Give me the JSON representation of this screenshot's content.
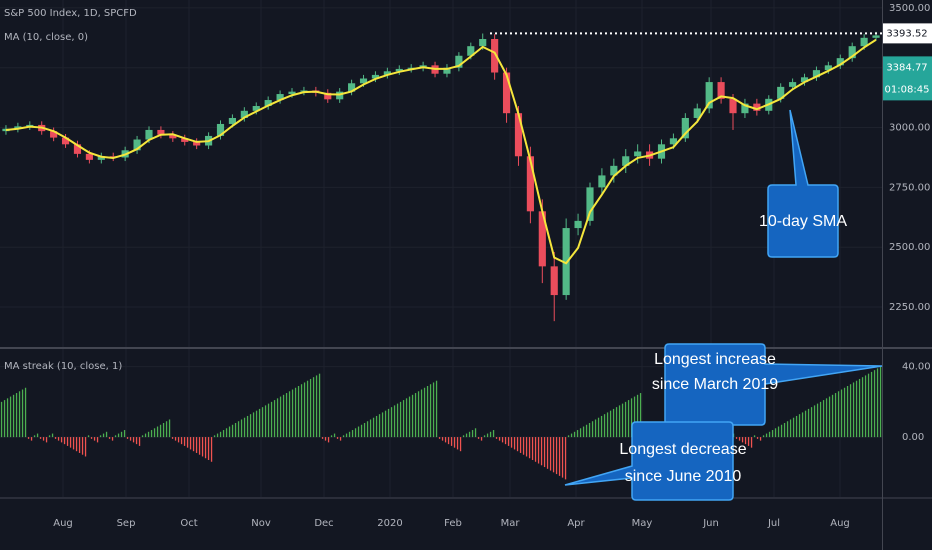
{
  "chart_data": [
    {
      "type": "candlestick",
      "title": "S&P 500 Index, 1D, SPCFD",
      "up_color": "#53b987",
      "down_color": "#eb4d5c",
      "open": [
        2985,
        2995,
        3005,
        3011,
        2985,
        2958,
        2930,
        2890,
        2865,
        2880,
        2875,
        2905,
        2950,
        2990,
        2970,
        2955,
        2940,
        2925,
        2965,
        3015,
        3040,
        3070,
        3090,
        3115,
        3140,
        3150,
        3155,
        3145,
        3118,
        3150,
        3185,
        3205,
        3220,
        3235,
        3245,
        3250,
        3260,
        3225,
        3250,
        3300,
        3340,
        3370,
        3230,
        3060,
        2880,
        2650,
        2420,
        2300,
        2580,
        2610,
        2750,
        2800,
        2840,
        2880,
        2900,
        2870,
        2930,
        2955,
        3040,
        3080,
        3190,
        3120,
        3060,
        3100,
        3070,
        3120,
        3170,
        3190,
        3210,
        3240,
        3260,
        3290,
        3340,
        3375
      ],
      "high": [
        3010,
        3020,
        3026,
        3026,
        3000,
        2973,
        2945,
        2905,
        2895,
        2895,
        2920,
        2965,
        3005,
        3005,
        2985,
        2970,
        2955,
        2980,
        3030,
        3055,
        3085,
        3105,
        3130,
        3155,
        3165,
        3170,
        3170,
        3160,
        3165,
        3200,
        3220,
        3235,
        3250,
        3260,
        3265,
        3275,
        3275,
        3265,
        3315,
        3355,
        3393,
        3390,
        3250,
        3090,
        2920,
        2700,
        2480,
        2620,
        2640,
        2770,
        2830,
        2870,
        2910,
        2930,
        2930,
        2950,
        2975,
        3060,
        3100,
        3210,
        3210,
        3140,
        3120,
        3120,
        3135,
        3185,
        3205,
        3225,
        3255,
        3275,
        3305,
        3355,
        3390,
        3400
      ],
      "low": [
        2970,
        2980,
        2990,
        2970,
        2943,
        2915,
        2875,
        2850,
        2850,
        2860,
        2860,
        2890,
        2935,
        2955,
        2940,
        2925,
        2910,
        2910,
        2950,
        3000,
        3025,
        3055,
        3075,
        3100,
        3125,
        3135,
        3130,
        3103,
        3103,
        3135,
        3170,
        3190,
        3205,
        3220,
        3230,
        3235,
        3210,
        3210,
        3235,
        3285,
        3325,
        3200,
        3020,
        2840,
        2600,
        2350,
        2191,
        2280,
        2550,
        2590,
        2720,
        2770,
        2810,
        2850,
        2840,
        2850,
        2910,
        2940,
        3020,
        3060,
        3100,
        2990,
        3040,
        3050,
        3055,
        3105,
        3155,
        3175,
        3195,
        3225,
        3245,
        3275,
        3325,
        3365
      ],
      "close": [
        2995,
        3005,
        3011,
        2985,
        2958,
        2930,
        2890,
        2865,
        2880,
        2875,
        2905,
        2950,
        2990,
        2970,
        2955,
        2940,
        2925,
        2965,
        3015,
        3040,
        3070,
        3090,
        3115,
        3140,
        3150,
        3155,
        3145,
        3118,
        3150,
        3185,
        3205,
        3220,
        3235,
        3245,
        3250,
        3260,
        3225,
        3250,
        3300,
        3340,
        3370,
        3230,
        3060,
        2880,
        2650,
        2420,
        2300,
        2580,
        2610,
        2750,
        2800,
        2840,
        2880,
        2900,
        2870,
        2930,
        2955,
        3040,
        3080,
        3190,
        3120,
        3060,
        3100,
        3070,
        3120,
        3170,
        3190,
        3210,
        3240,
        3260,
        3290,
        3340,
        3375,
        3385
      ],
      "ma": {
        "name": "MA (10, close, 0)",
        "color": "#f5e63c",
        "values": [
          2990,
          2995,
          3004,
          3000,
          2985,
          2958,
          2926,
          2895,
          2878,
          2873,
          2887,
          2910,
          2948,
          2970,
          2972,
          2955,
          2940,
          2943,
          2968,
          3007,
          3042,
          3067,
          3092,
          3115,
          3135,
          3148,
          3150,
          3139,
          3138,
          3151,
          3180,
          3203,
          3220,
          3233,
          3243,
          3252,
          3245,
          3245,
          3258,
          3297,
          3337,
          3313,
          3220,
          3057,
          2863,
          2650,
          2457,
          2433,
          2497,
          2647,
          2720,
          2797,
          2840,
          2873,
          2883,
          2900,
          2918,
          2975,
          3025,
          3103,
          3130,
          3123,
          3093,
          3077,
          3097,
          3120,
          3160,
          3190,
          3213,
          3237,
          3263,
          3297,
          3335,
          3367
        ]
      },
      "ylim": [
        2083,
        3533
      ],
      "yticks": [
        {
          "value": 2250,
          "label": "2250.00"
        },
        {
          "value": 2500,
          "label": "2500.00"
        },
        {
          "value": 2750,
          "label": "2750.00"
        },
        {
          "value": 3000,
          "label": "3000.00"
        },
        {
          "value": 3250,
          "label": "3250.00"
        },
        {
          "value": 3500,
          "label": "3500.00"
        }
      ],
      "high_line": 3393.52,
      "last_price": 3384.77,
      "countdown": "01:08:45",
      "annotation": "10-day SMA",
      "grid": true
    },
    {
      "type": "bar",
      "title": "MA streak (10, close, 1)",
      "up_color": "#4caf50",
      "down_color": "#f05350",
      "values": [
        20,
        21,
        22,
        23,
        24,
        25,
        26,
        27,
        28,
        -1,
        -2,
        1,
        2,
        -1,
        -2,
        -3,
        1,
        2,
        -1,
        -2,
        -3,
        -4,
        -5,
        -6,
        -7,
        -8,
        -9,
        -10,
        -11,
        1,
        -1,
        -2,
        -3,
        1,
        2,
        3,
        -1,
        -2,
        1,
        2,
        3,
        4,
        -1,
        -2,
        -3,
        -4,
        -5,
        1,
        2,
        3,
        4,
        5,
        6,
        7,
        8,
        9,
        10,
        -1,
        -2,
        -3,
        -4,
        -5,
        -6,
        -7,
        -8,
        -9,
        -10,
        -11,
        -12,
        -13,
        -14,
        1,
        2,
        3,
        4,
        5,
        6,
        7,
        8,
        9,
        10,
        11,
        12,
        13,
        14,
        15,
        16,
        17,
        18,
        19,
        20,
        21,
        22,
        23,
        24,
        25,
        26,
        27,
        28,
        29,
        30,
        31,
        32,
        33,
        34,
        35,
        36,
        -1,
        -2,
        -3,
        1,
        2,
        -1,
        -2,
        1,
        2,
        3,
        4,
        5,
        6,
        7,
        8,
        9,
        10,
        11,
        12,
        13,
        14,
        15,
        16,
        17,
        18,
        19,
        20,
        21,
        22,
        23,
        24,
        25,
        26,
        27,
        28,
        29,
        30,
        31,
        32,
        -1,
        -2,
        -3,
        -4,
        -5,
        -6,
        -7,
        -8,
        1,
        2,
        3,
        4,
        5,
        -1,
        -2,
        1,
        2,
        3,
        4,
        -1,
        -2,
        -3,
        -4,
        -5,
        -6,
        -7,
        -8,
        -9,
        -10,
        -11,
        -12,
        -13,
        -14,
        -15,
        -16,
        -17,
        -18,
        -19,
        -20,
        -21,
        -22,
        -23,
        -24,
        1,
        2,
        3,
        4,
        5,
        6,
        7,
        8,
        9,
        10,
        11,
        12,
        13,
        14,
        15,
        16,
        17,
        18,
        19,
        20,
        21,
        22,
        23,
        24,
        25,
        -1,
        -2,
        -3,
        -4,
        -5,
        -6,
        1,
        2,
        3,
        4,
        5,
        6,
        7,
        8,
        9,
        10,
        11,
        12,
        13,
        14,
        15,
        16,
        17,
        18,
        19,
        20,
        -1,
        -2,
        -3,
        1,
        2,
        -1,
        -2,
        -3,
        -4,
        -5,
        -6,
        1,
        -1,
        -2,
        1,
        2,
        3,
        4,
        5,
        6,
        7,
        8,
        9,
        10,
        11,
        12,
        13,
        14,
        15,
        16,
        17,
        18,
        19,
        20,
        21,
        22,
        23,
        24,
        25,
        26,
        27,
        28,
        29,
        30,
        31,
        32,
        33,
        34,
        35,
        36,
        37,
        38,
        39,
        40
      ],
      "ylim": [
        -34,
        50
      ],
      "yticks": [
        {
          "value": 0,
          "label": "0.00"
        },
        {
          "value": 40,
          "label": "40.00"
        }
      ],
      "xlim": [
        0,
        294
      ],
      "xticks": [
        {
          "value": 21,
          "label": "Aug"
        },
        {
          "value": 42,
          "label": "Sep"
        },
        {
          "value": 63,
          "label": "Oct"
        },
        {
          "value": 87,
          "label": "Nov"
        },
        {
          "value": 108,
          "label": "Dec"
        },
        {
          "value": 130,
          "label": "2020"
        },
        {
          "value": 151,
          "label": "Feb"
        },
        {
          "value": 170,
          "label": "Mar"
        },
        {
          "value": 192,
          "label": "Apr"
        },
        {
          "value": 214,
          "label": "May"
        },
        {
          "value": 237,
          "label": "Jun"
        },
        {
          "value": 258,
          "label": "Jul"
        },
        {
          "value": 280,
          "label": "Aug"
        }
      ],
      "annotations": [
        {
          "lines": [
            "Longest increase",
            "since March 2019"
          ]
        },
        {
          "lines": [
            "Longest decrease",
            "since June 2010"
          ]
        }
      ],
      "grid": true
    }
  ]
}
